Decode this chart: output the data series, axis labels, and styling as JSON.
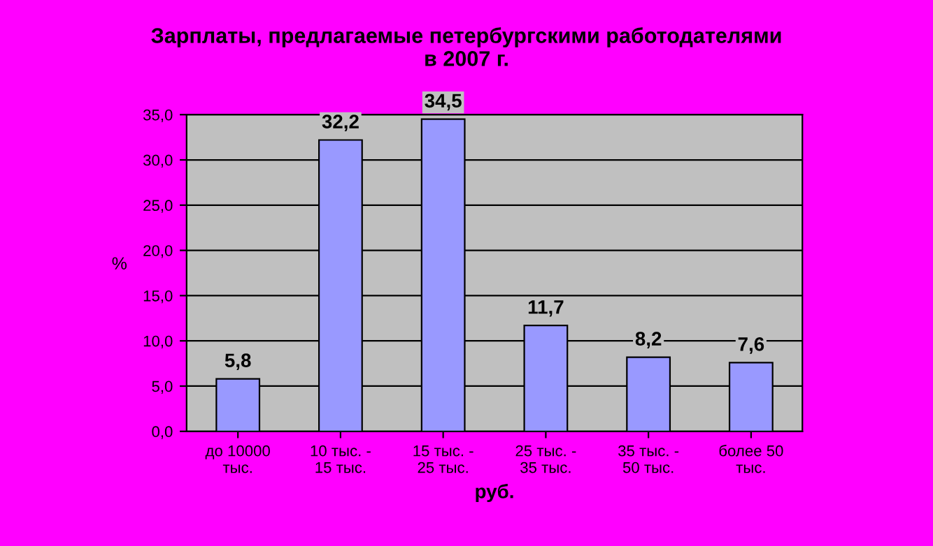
{
  "chart_data": {
    "type": "bar",
    "title": "Зарплаты, предлагаемые петербургскими работодателями\nв 2007 г.",
    "xlabel": "руб.",
    "ylabel": "%",
    "categories": [
      "до 10000\nтыс.",
      "10 тыс. -\n15 тыс.",
      "15 тыс. -\n25 тыс.",
      "25 тыс. -\n35 тыс.",
      "35 тыс. -\n50 тыс.",
      "более 50\nтыс."
    ],
    "values": [
      5.8,
      32.2,
      34.5,
      11.7,
      8.2,
      7.6
    ],
    "value_labels": [
      "5,8",
      "32,2",
      "34,5",
      "11,7",
      "8,2",
      "7,6"
    ],
    "color": "#9999ff",
    "ylim": [
      0,
      35
    ],
    "yticks": [
      {
        "value": 0,
        "label": "0,0"
      },
      {
        "value": 5,
        "label": "5,0"
      },
      {
        "value": 10,
        "label": "10,0"
      },
      {
        "value": 15,
        "label": "15,0"
      },
      {
        "value": 20,
        "label": "20,0"
      },
      {
        "value": 25,
        "label": "25,0"
      },
      {
        "value": 30,
        "label": "30,0"
      },
      {
        "value": 35,
        "label": "35,0"
      }
    ],
    "grid": "y",
    "legend": false
  }
}
